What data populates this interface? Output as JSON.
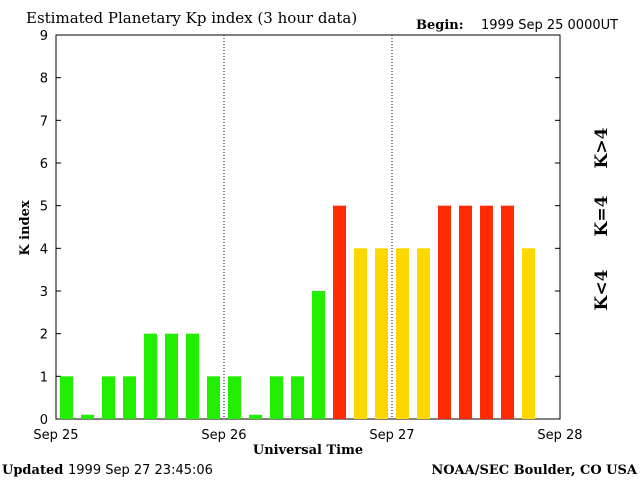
{
  "chart_data": {
    "type": "bar",
    "title": "Estimated Planetary Kp index (3 hour data)",
    "begin_label": "Begin:",
    "begin_value": "1999 Sep 25 0000UT",
    "xlabel": "Universal Time",
    "ylabel": "K index",
    "ylim": [
      0,
      9
    ],
    "yticks": [
      "0",
      "1",
      "2",
      "3",
      "4",
      "5",
      "6",
      "7",
      "8",
      "9"
    ],
    "day_labels": [
      "Sep 25",
      "Sep 26",
      "Sep 27",
      "Sep 28"
    ],
    "bar_interval_hours": 3,
    "values": [
      1,
      0.1,
      1,
      1,
      2,
      2,
      2,
      1,
      1,
      0.1,
      1,
      1,
      3,
      5,
      4,
      4,
      4,
      4,
      5,
      5,
      5,
      5,
      4
    ],
    "colors": {
      "below_4": "#22ee00",
      "equal_4": "#ffd700",
      "above_4": "#ff2a00",
      "grid": "#000000"
    },
    "legend": {
      "below_4": "K<4",
      "equal_4": "K=4",
      "above_4": "K>4"
    }
  },
  "footer": {
    "updated_label": "Updated",
    "updated_value": "1999 Sep 27 23:45:06",
    "source": "NOAA/SEC Boulder, CO USA"
  }
}
